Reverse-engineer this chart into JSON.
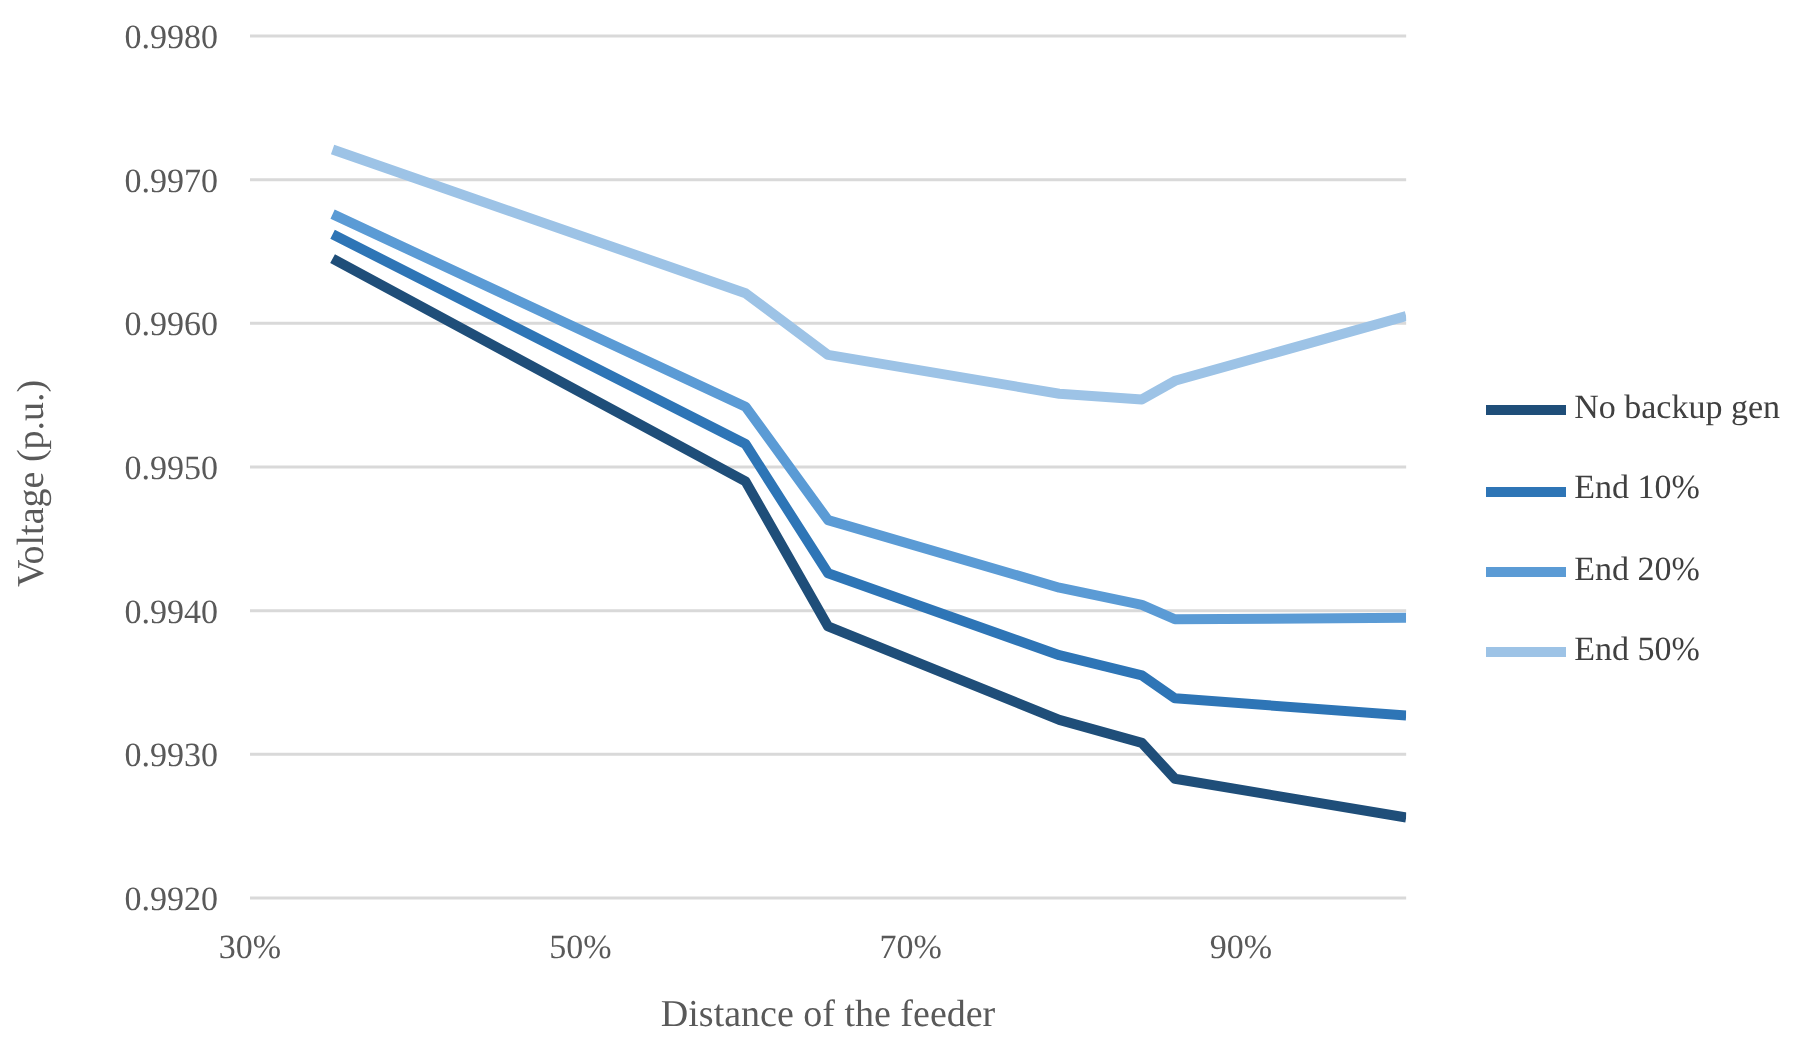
{
  "chart_data": {
    "type": "line",
    "xlabel": "Distance of the feeder",
    "ylabel": "Voltage (p.u.)",
    "x": [
      35,
      60,
      65,
      79,
      84,
      86,
      100
    ],
    "xlim": [
      30,
      100
    ],
    "xticks": [
      {
        "value": 30,
        "label": "30%"
      },
      {
        "value": 50,
        "label": "50%"
      },
      {
        "value": 70,
        "label": "70%"
      },
      {
        "value": 90,
        "label": "90%"
      }
    ],
    "ylim": [
      0.992,
      0.998
    ],
    "yticks": [
      {
        "value": 0.992,
        "label": "0.9920"
      },
      {
        "value": 0.993,
        "label": "0.9930"
      },
      {
        "value": 0.994,
        "label": "0.9940"
      },
      {
        "value": 0.995,
        "label": "0.9950"
      },
      {
        "value": 0.996,
        "label": "0.9960"
      },
      {
        "value": 0.997,
        "label": "0.9970"
      },
      {
        "value": 0.998,
        "label": "0.9980"
      }
    ],
    "grid": "y",
    "legend": "right",
    "marker": "none",
    "line_style": "solid",
    "series": [
      {
        "name": "No backup gen",
        "color": "#1f4e79",
        "values": [
          0.99645,
          0.9949,
          0.99389,
          0.99324,
          0.99308,
          0.99283,
          0.99256
        ]
      },
      {
        "name": "End 10%",
        "color": "#2e75b6",
        "values": [
          0.99662,
          0.99516,
          0.99426,
          0.99369,
          0.99355,
          0.99339,
          0.99327
        ]
      },
      {
        "name": "End 20%",
        "color": "#5b9bd5",
        "values": [
          0.99676,
          0.99542,
          0.99463,
          0.99416,
          0.99404,
          0.99394,
          0.99395
        ]
      },
      {
        "name": "End 50%",
        "color": "#9dc3e6",
        "values": [
          0.99721,
          0.99621,
          0.99578,
          0.99551,
          0.99547,
          0.9956,
          0.99605
        ]
      }
    ]
  }
}
